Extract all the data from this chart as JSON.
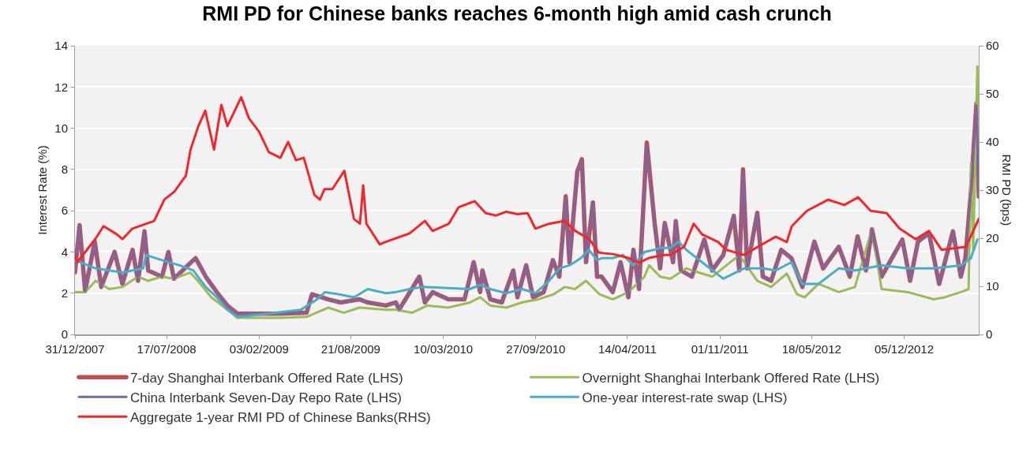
{
  "chart_data": {
    "type": "line",
    "title": "RMI PD for Chinese banks reaches 6-month high amid cash crunch",
    "ylabel": "Interest Rate (%)",
    "y2label": "RMI PD (bps)",
    "xlim": [
      "2007-12-31",
      "2013-05-16"
    ],
    "xticks": [
      {
        "value": "2007-12-31",
        "label": "31/12/2007"
      },
      {
        "value": "2008-07-17",
        "label": "17/07/2008"
      },
      {
        "value": "2009-02-03",
        "label": "03/02/2009"
      },
      {
        "value": "2009-08-21",
        "label": "21/08/2009"
      },
      {
        "value": "2010-03-10",
        "label": "10/03/2010"
      },
      {
        "value": "2010-09-27",
        "label": "27/09/2010"
      },
      {
        "value": "2011-04-14",
        "label": "14/04/2011"
      },
      {
        "value": "2011-11-01",
        "label": "01/11/2011"
      },
      {
        "value": "2012-05-18",
        "label": "18/05/2012"
      },
      {
        "value": "2012-12-05",
        "label": "05/12/2012"
      }
    ],
    "ylim": [
      0,
      14
    ],
    "yticks": [
      0,
      2,
      4,
      6,
      8,
      10,
      12,
      14
    ],
    "y2lim": [
      0,
      60
    ],
    "y2ticks": [
      0,
      10,
      20,
      30,
      40,
      50,
      60
    ],
    "grid": "y",
    "legend": "bottom",
    "series": [
      {
        "name": "7-day Shanghai Interbank Offered Rate (LHS)",
        "color": "#c0504d",
        "x": [
          "2007-12-31",
          "2008-01-10",
          "2008-01-22",
          "2008-02-12",
          "2008-02-26",
          "2008-03-26",
          "2008-04-12",
          "2008-05-04",
          "2008-05-16",
          "2008-05-30",
          "2008-06-07",
          "2008-07-07",
          "2008-07-21",
          "2008-08-02",
          "2008-09-01",
          "2008-09-18",
          "2008-10-10",
          "2008-11-03",
          "2008-11-26",
          "2008-12-18",
          "2009-01-22",
          "2009-03-22",
          "2009-05-17",
          "2009-05-29",
          "2009-07-03",
          "2009-07-30",
          "2009-09-09",
          "2009-09-27",
          "2009-11-05",
          "2009-11-27",
          "2009-12-04",
          "2010-01-17",
          "2010-01-29",
          "2010-02-15",
          "2010-03-21",
          "2010-04-25",
          "2010-05-15",
          "2010-05-29",
          "2010-06-03",
          "2010-06-20",
          "2010-07-15",
          "2010-08-09",
          "2010-08-18",
          "2010-09-06",
          "2010-09-21",
          "2010-10-14",
          "2010-11-03",
          "2010-11-17",
          "2010-12-01",
          "2010-12-09",
          "2010-12-26",
          "2011-01-05",
          "2011-01-14",
          "2011-01-29",
          "2011-02-07",
          "2011-02-17",
          "2011-03-13",
          "2011-03-30",
          "2011-04-16",
          "2011-04-27",
          "2011-05-09",
          "2011-05-26",
          "2011-06-12",
          "2011-06-24",
          "2011-07-04",
          "2011-07-22",
          "2011-07-28",
          "2011-08-08",
          "2011-09-01",
          "2011-09-28",
          "2011-10-15",
          "2011-11-08",
          "2011-12-01",
          "2011-12-13",
          "2011-12-21",
          "2011-12-30",
          "2012-01-21",
          "2012-02-02",
          "2012-02-20",
          "2012-03-13",
          "2012-04-04",
          "2012-04-28",
          "2012-05-24",
          "2012-06-12",
          "2012-07-16",
          "2012-08-09",
          "2012-08-26",
          "2012-09-13",
          "2012-09-26",
          "2012-10-17",
          "2012-12-01",
          "2012-12-18",
          "2013-01-04",
          "2013-01-28",
          "2013-02-19",
          "2013-03-21",
          "2013-04-07",
          "2013-04-17",
          "2013-04-29",
          "2013-05-11",
          "2013-05-16"
        ],
        "values": [
          3.0,
          5.3,
          2.1,
          4.5,
          2.3,
          4.0,
          2.45,
          4.1,
          2.6,
          5.0,
          3.1,
          2.8,
          4.0,
          2.7,
          3.35,
          3.7,
          2.8,
          2.05,
          1.4,
          1.0,
          1.0,
          1.0,
          1.05,
          1.95,
          1.7,
          1.55,
          1.7,
          1.55,
          1.4,
          1.55,
          1.2,
          2.8,
          1.55,
          2.05,
          1.7,
          1.7,
          3.5,
          2.05,
          3.1,
          1.7,
          1.55,
          3.1,
          1.8,
          3.35,
          1.8,
          2.05,
          3.6,
          2.8,
          6.7,
          3.5,
          7.9,
          8.5,
          3.5,
          6.4,
          2.8,
          2.8,
          2.05,
          3.5,
          1.8,
          4.1,
          2.2,
          9.3,
          5.4,
          3.2,
          5.4,
          3.5,
          5.5,
          3.1,
          2.8,
          4.6,
          3.1,
          3.85,
          5.75,
          3.1,
          8.0,
          3.2,
          5.9,
          2.8,
          2.6,
          4.1,
          3.7,
          2.3,
          4.5,
          3.2,
          4.25,
          2.8,
          4.75,
          3.1,
          5.1,
          2.8,
          4.6,
          2.6,
          4.5,
          4.9,
          2.45,
          5.0,
          2.8,
          3.7,
          6.9,
          11.2,
          6.7
        ]
      },
      {
        "name": "Overnight Shanghai Interbank Offered Rate (LHS)",
        "color": "#9bbb59",
        "x": [
          "2007-12-31",
          "2008-01-22",
          "2008-02-14",
          "2008-03-14",
          "2008-04-12",
          "2008-05-16",
          "2008-06-07",
          "2008-07-07",
          "2008-08-02",
          "2008-09-06",
          "2008-09-23",
          "2008-10-22",
          "2008-11-26",
          "2008-12-18",
          "2009-03-22",
          "2009-05-17",
          "2009-07-03",
          "2009-08-06",
          "2009-09-09",
          "2009-11-05",
          "2009-11-27",
          "2010-01-01",
          "2010-02-03",
          "2010-03-21",
          "2010-05-07",
          "2010-05-29",
          "2010-06-20",
          "2010-07-25",
          "2010-08-28",
          "2010-10-02",
          "2010-11-05",
          "2010-11-29",
          "2010-12-21",
          "2011-01-14",
          "2011-02-12",
          "2011-03-13",
          "2011-04-16",
          "2011-05-21",
          "2011-05-31",
          "2011-06-24",
          "2011-07-16",
          "2011-08-20",
          "2011-09-01",
          "2011-10-15",
          "2011-12-13",
          "2012-01-21",
          "2012-02-20",
          "2012-03-25",
          "2012-04-16",
          "2012-05-03",
          "2012-06-02",
          "2012-07-16",
          "2012-08-20",
          "2012-09-26",
          "2012-10-17",
          "2012-12-13",
          "2013-02-07",
          "2013-03-03",
          "2013-04-07",
          "2013-04-24",
          "2013-04-29",
          "2013-05-04",
          "2013-05-13",
          "2013-05-16"
        ],
        "values": [
          2.05,
          2.05,
          2.6,
          2.2,
          2.3,
          2.8,
          2.6,
          2.8,
          2.7,
          3.0,
          2.6,
          1.8,
          1.2,
          0.8,
          0.8,
          0.85,
          1.3,
          1.05,
          1.3,
          1.2,
          1.2,
          1.05,
          1.4,
          1.3,
          1.55,
          1.8,
          1.4,
          1.3,
          1.55,
          1.7,
          1.95,
          2.3,
          2.2,
          2.6,
          1.95,
          1.7,
          2.05,
          2.8,
          3.35,
          2.8,
          2.7,
          3.2,
          3.1,
          2.8,
          3.85,
          2.6,
          2.3,
          2.95,
          1.95,
          1.8,
          2.45,
          2.05,
          2.3,
          5.1,
          2.2,
          2.05,
          1.7,
          1.8,
          2.05,
          2.2,
          8.3,
          4.1,
          13.0,
          6.7
        ]
      },
      {
        "name": "China Interbank Seven-Day Repo Rate (LHS)",
        "color": "#8064a2",
        "x": [
          "2007-12-31",
          "2008-01-10",
          "2008-01-22",
          "2008-02-12",
          "2008-02-26",
          "2008-03-26",
          "2008-04-12",
          "2008-05-04",
          "2008-05-16",
          "2008-05-30",
          "2008-06-07",
          "2008-07-07",
          "2008-07-21",
          "2008-08-02",
          "2008-09-01",
          "2008-09-18",
          "2008-10-10",
          "2008-11-03",
          "2008-11-26",
          "2008-12-18",
          "2009-01-22",
          "2009-03-22",
          "2009-05-17",
          "2009-05-29",
          "2009-07-03",
          "2009-07-30",
          "2009-09-09",
          "2009-09-27",
          "2009-11-05",
          "2009-11-27",
          "2009-12-04",
          "2010-01-17",
          "2010-01-29",
          "2010-02-15",
          "2010-03-21",
          "2010-04-25",
          "2010-05-15",
          "2010-05-29",
          "2010-06-03",
          "2010-06-20",
          "2010-07-15",
          "2010-08-09",
          "2010-08-18",
          "2010-09-06",
          "2010-09-21",
          "2010-10-14",
          "2010-11-03",
          "2010-11-17",
          "2010-12-01",
          "2010-12-09",
          "2010-12-26",
          "2011-01-05",
          "2011-01-14",
          "2011-01-29",
          "2011-02-07",
          "2011-02-17",
          "2011-03-13",
          "2011-03-30",
          "2011-04-16",
          "2011-04-27",
          "2011-05-09",
          "2011-05-26",
          "2011-06-12",
          "2011-06-24",
          "2011-07-04",
          "2011-07-22",
          "2011-07-28",
          "2011-08-08",
          "2011-09-01",
          "2011-09-28",
          "2011-10-15",
          "2011-11-08",
          "2011-12-01",
          "2011-12-13",
          "2011-12-21",
          "2011-12-30",
          "2012-01-21",
          "2012-02-02",
          "2012-02-20",
          "2012-03-13",
          "2012-04-04",
          "2012-04-28",
          "2012-05-24",
          "2012-06-12",
          "2012-07-16",
          "2012-08-09",
          "2012-08-26",
          "2012-09-13",
          "2012-09-26",
          "2012-10-17",
          "2012-12-01",
          "2012-12-18",
          "2013-01-04",
          "2013-01-28",
          "2013-02-19",
          "2013-03-21",
          "2013-04-07",
          "2013-04-17",
          "2013-04-29",
          "2013-05-11",
          "2013-05-16"
        ],
        "values": [
          3.0,
          5.3,
          2.1,
          4.5,
          2.3,
          4.0,
          2.45,
          4.1,
          2.6,
          5.0,
          3.1,
          2.8,
          4.0,
          2.7,
          3.35,
          3.7,
          2.8,
          2.05,
          1.4,
          1.0,
          1.0,
          1.0,
          1.05,
          1.95,
          1.7,
          1.55,
          1.7,
          1.55,
          1.4,
          1.55,
          1.2,
          2.8,
          1.55,
          2.05,
          1.7,
          1.7,
          3.5,
          2.05,
          3.1,
          1.7,
          1.55,
          3.1,
          1.8,
          3.35,
          1.8,
          2.05,
          3.6,
          2.8,
          6.65,
          3.5,
          7.9,
          8.45,
          3.5,
          6.4,
          2.8,
          2.8,
          2.05,
          3.5,
          1.8,
          4.1,
          2.2,
          9.2,
          5.4,
          3.2,
          5.4,
          3.5,
          5.5,
          3.1,
          2.8,
          4.6,
          3.1,
          3.85,
          5.75,
          3.1,
          7.95,
          3.2,
          5.9,
          2.8,
          2.6,
          4.1,
          3.7,
          2.3,
          4.5,
          3.2,
          4.25,
          2.8,
          4.75,
          3.1,
          5.1,
          2.8,
          4.6,
          2.6,
          4.5,
          4.9,
          2.45,
          5.0,
          2.8,
          3.7,
          6.9,
          11.1,
          6.65
        ]
      },
      {
        "name": "One-year interest-rate swap (LHS)",
        "color": "#4bacc6",
        "x": [
          "2007-12-31",
          "2008-02-14",
          "2008-04-12",
          "2008-05-27",
          "2008-06-02",
          "2008-07-07",
          "2008-08-14",
          "2008-09-13",
          "2008-09-23",
          "2008-10-10",
          "2008-11-03",
          "2008-11-26",
          "2008-12-18",
          "2009-01-12",
          "2009-03-10",
          "2009-05-05",
          "2009-06-09",
          "2009-06-26",
          "2009-07-25",
          "2009-08-28",
          "2009-09-27",
          "2009-11-05",
          "2009-11-27",
          "2009-12-27",
          "2010-01-24",
          "2010-03-21",
          "2010-05-07",
          "2010-05-29",
          "2010-06-20",
          "2010-07-25",
          "2010-08-28",
          "2010-09-26",
          "2010-10-26",
          "2010-11-17",
          "2010-12-09",
          "2011-01-03",
          "2011-01-20",
          "2011-02-07",
          "2011-02-17",
          "2011-03-13",
          "2011-04-04",
          "2011-04-27",
          "2011-05-21",
          "2011-06-12",
          "2011-06-24",
          "2011-07-16",
          "2011-08-03",
          "2011-08-20",
          "2011-09-23",
          "2011-11-08",
          "2011-12-23",
          "2012-02-02",
          "2012-03-01",
          "2012-04-04",
          "2012-04-28",
          "2012-06-02",
          "2012-07-16",
          "2012-08-20",
          "2012-10-17",
          "2012-12-13",
          "2013-02-07",
          "2013-04-07",
          "2013-04-29",
          "2013-05-13"
        ],
        "values": [
          3.6,
          3.2,
          3.0,
          3.2,
          3.85,
          3.6,
          3.35,
          3.1,
          2.8,
          2.3,
          1.8,
          1.2,
          0.85,
          0.9,
          1.05,
          1.2,
          1.7,
          2.05,
          1.95,
          1.8,
          2.2,
          2.0,
          2.05,
          2.2,
          2.3,
          2.25,
          2.2,
          2.4,
          2.2,
          2.0,
          2.2,
          2.0,
          2.6,
          3.2,
          3.35,
          3.7,
          4.1,
          3.6,
          3.7,
          3.7,
          3.85,
          3.35,
          4.0,
          4.1,
          4.2,
          4.2,
          4.5,
          4.1,
          3.5,
          2.7,
          3.2,
          3.2,
          3.1,
          3.5,
          2.45,
          2.45,
          3.2,
          3.1,
          3.35,
          3.2,
          3.2,
          3.35,
          3.7,
          4.6
        ]
      },
      {
        "name": "Aggregate 1-year RMI PD of Chinese Banks(RHS)",
        "color": "#f0272b",
        "axis": "y2",
        "x": [
          "2007-12-31",
          "2008-01-05",
          "2008-02-13",
          "2008-03-02",
          "2008-03-31",
          "2008-04-12",
          "2008-05-04",
          "2008-06-03",
          "2008-06-20",
          "2008-07-12",
          "2008-08-03",
          "2008-08-28",
          "2008-09-07",
          "2008-09-24",
          "2008-10-09",
          "2008-10-28",
          "2008-11-13",
          "2008-11-26",
          "2008-12-26",
          "2009-01-12",
          "2009-02-03",
          "2009-02-24",
          "2009-03-21",
          "2009-04-07",
          "2009-04-24",
          "2009-05-11",
          "2009-06-03",
          "2009-06-15",
          "2009-06-25",
          "2009-07-12",
          "2009-08-07",
          "2009-08-28",
          "2009-09-10",
          "2009-09-17",
          "2009-09-24",
          "2009-10-23",
          "2009-11-04",
          "2009-12-27",
          "2010-01-29",
          "2010-02-15",
          "2010-03-22",
          "2010-04-12",
          "2010-05-17",
          "2010-06-10",
          "2010-07-02",
          "2010-07-25",
          "2010-08-18",
          "2010-09-09",
          "2010-09-26",
          "2010-10-26",
          "2010-11-29",
          "2010-12-22",
          "2011-01-21",
          "2011-02-11",
          "2011-03-13",
          "2011-04-16",
          "2011-05-09",
          "2011-05-31",
          "2011-07-04",
          "2011-07-16",
          "2011-08-15",
          "2011-09-05",
          "2011-09-23",
          "2011-10-28",
          "2011-11-14",
          "2011-12-23",
          "2012-01-22",
          "2012-03-01",
          "2012-03-25",
          "2012-04-05",
          "2012-05-08",
          "2012-06-23",
          "2012-07-28",
          "2012-08-27",
          "2012-09-23",
          "2012-10-28",
          "2012-11-25",
          "2012-12-30",
          "2013-01-28",
          "2013-02-24",
          "2013-04-18",
          "2013-05-16"
        ],
        "values": [
          16.5,
          15,
          19.8,
          22.5,
          20.8,
          19.8,
          22,
          23,
          23.6,
          28,
          29.7,
          33,
          38.4,
          43.3,
          46.5,
          38.4,
          47.7,
          43.3,
          49.3,
          44.9,
          42.1,
          37.9,
          36.7,
          40,
          36.2,
          36.7,
          29,
          28,
          30.2,
          30.2,
          34,
          24,
          23,
          31,
          23,
          18.7,
          19.2,
          21,
          23.6,
          21.5,
          23,
          26.4,
          27.7,
          25.2,
          24.7,
          25.5,
          25,
          25.2,
          22,
          23,
          23.6,
          21.5,
          19.8,
          17,
          16.7,
          15.9,
          14.9,
          15.9,
          16.5,
          16.5,
          18.2,
          23,
          20.8,
          19.2,
          17.6,
          16.5,
          18.2,
          20.3,
          19.2,
          22.5,
          25.7,
          28,
          26.9,
          28.5,
          25.7,
          25.2,
          22,
          19.8,
          21.5,
          17.6,
          18.2,
          24
        ]
      }
    ]
  }
}
